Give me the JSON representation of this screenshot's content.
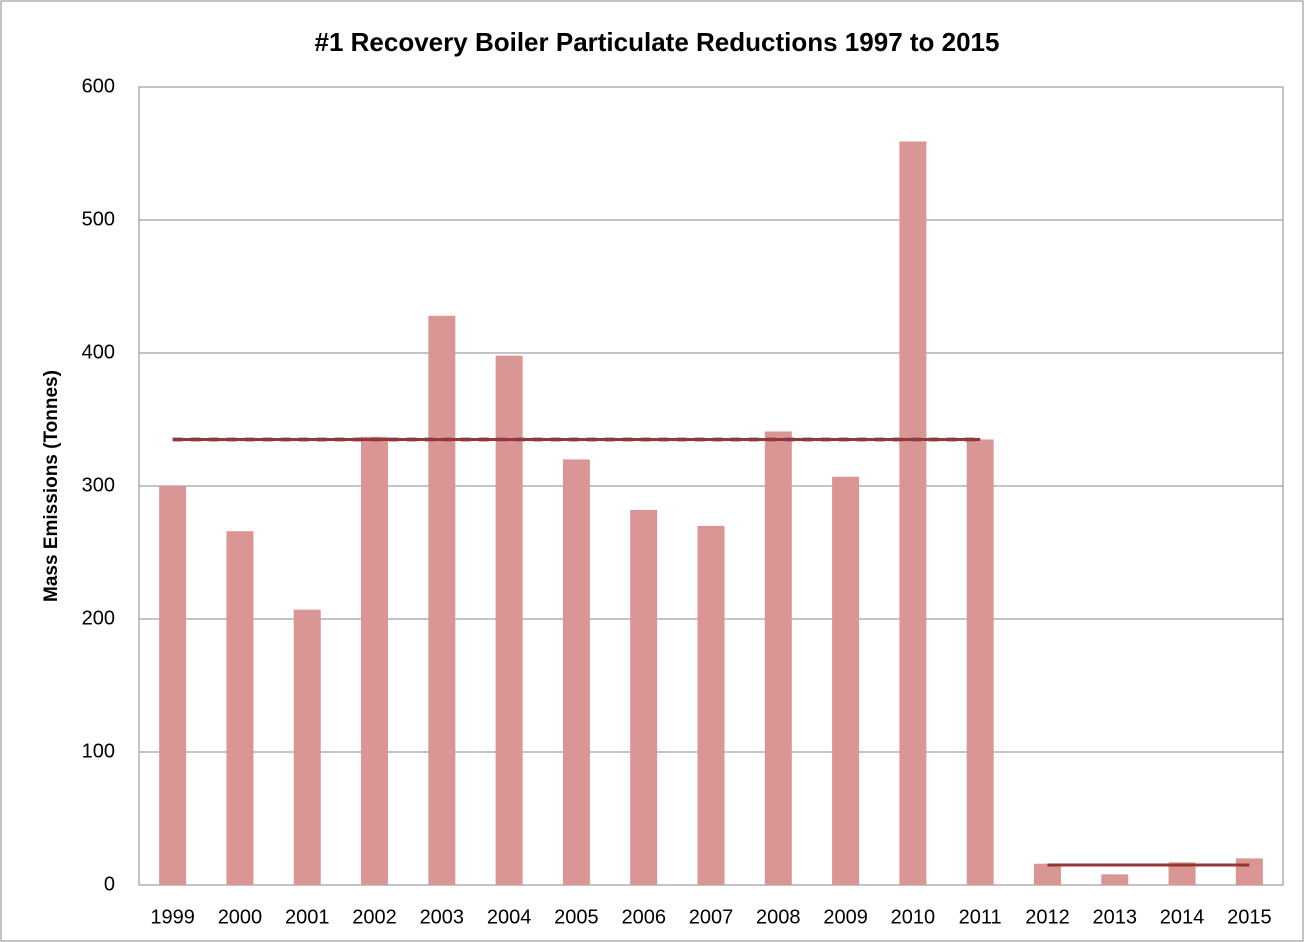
{
  "chart_data": {
    "type": "bar",
    "title": "#1 Recovery Boiler Particulate Reductions 1997 to 2015",
    "y_label": "Mass Emissions (Tonnes)",
    "categories": [
      "1999",
      "2000",
      "2001",
      "2002",
      "2003",
      "2004",
      "2005",
      "2006",
      "2007",
      "2008",
      "2009",
      "2010",
      "2011",
      "2012",
      "2013",
      "2014",
      "2015"
    ],
    "series": [
      {
        "type": "bar",
        "color": "#d99694",
        "values": [
          300,
          266,
          207,
          337,
          428,
          398,
          320,
          282,
          270,
          341,
          307,
          559,
          335,
          16,
          8,
          17,
          20
        ]
      },
      {
        "type": "line",
        "dashed": true,
        "color": "#8064a2",
        "values": [
          335,
          335,
          335,
          335,
          335,
          335,
          335,
          335,
          335,
          335,
          335,
          335,
          335,
          null,
          null,
          null,
          null
        ]
      },
      {
        "type": "line",
        "color": "#953735",
        "values": [
          335,
          335,
          335,
          335,
          335,
          335,
          335,
          335,
          335,
          335,
          335,
          335,
          335,
          null,
          null,
          null,
          null
        ]
      },
      {
        "type": "line",
        "color": "#953735",
        "values": [
          null,
          null,
          null,
          null,
          null,
          null,
          null,
          null,
          null,
          null,
          null,
          null,
          null,
          15,
          15,
          15,
          15
        ]
      }
    ],
    "ylim": [
      0,
      600
    ],
    "yticks": [
      0,
      100,
      200,
      300,
      400,
      500,
      600
    ],
    "grid": true
  }
}
